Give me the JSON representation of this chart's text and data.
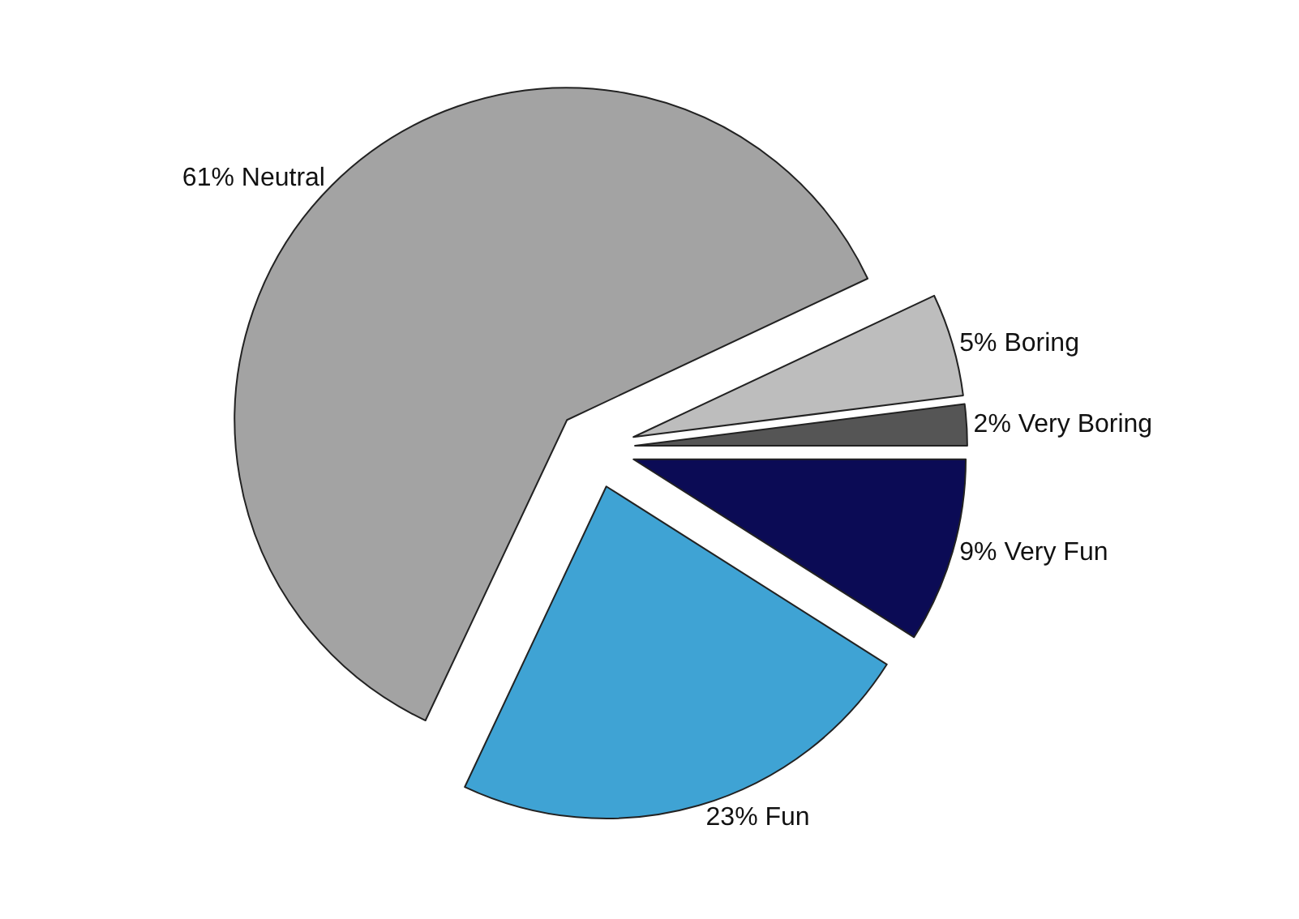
{
  "chart_data": {
    "type": "pie",
    "categories": [
      "Very Fun",
      "Fun",
      "Neutral",
      "Boring",
      "Very Boring"
    ],
    "values": [
      9,
      23,
      61,
      5,
      2
    ],
    "value_labels": [
      "9%",
      "23%",
      "61%",
      "5%",
      "2%"
    ],
    "colors": [
      "#0b0b55",
      "#3fa3d4",
      "#a3a3a3",
      "#bdbdbd",
      "#555555"
    ]
  }
}
